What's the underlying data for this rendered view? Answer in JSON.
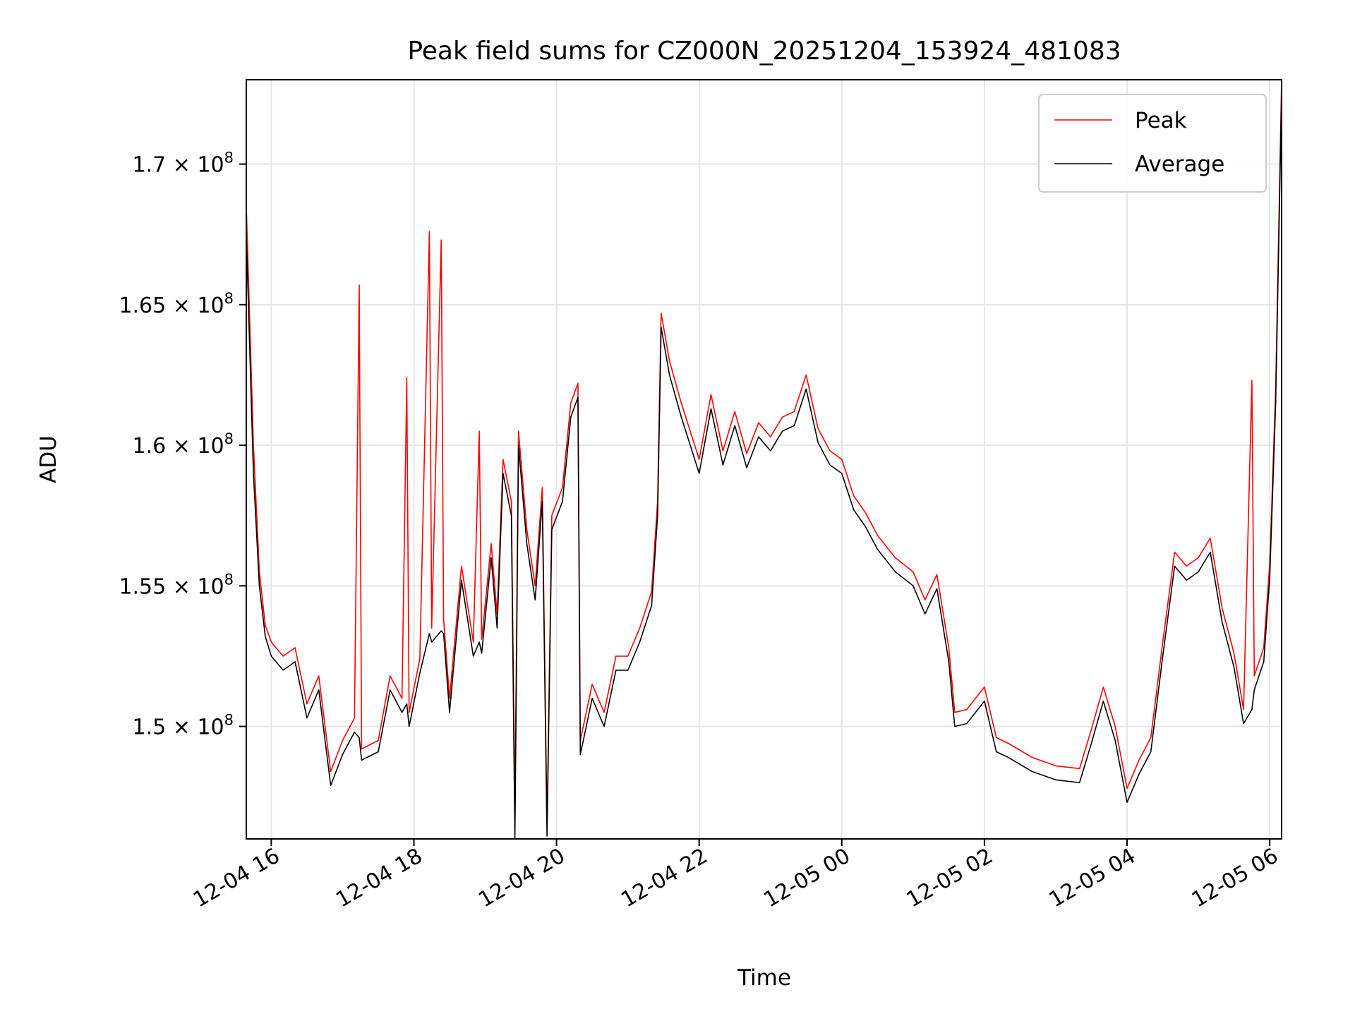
{
  "chart_data": {
    "type": "line",
    "title": "Peak field sums for CZ000N_20251204_153924_481083",
    "xlabel": "Time",
    "ylabel": "ADU",
    "x_range": [
      "2025-12-04T15:39:00",
      "2025-12-05T06:10:00"
    ],
    "ylim": [
      146000000,
      173000000
    ],
    "grid": true,
    "legend_position": "top-right",
    "x_ticks": [
      {
        "time": "2025-12-04T16:00:00",
        "label": "12-04 16"
      },
      {
        "time": "2025-12-04T18:00:00",
        "label": "12-04 18"
      },
      {
        "time": "2025-12-04T20:00:00",
        "label": "12-04 20"
      },
      {
        "time": "2025-12-04T22:00:00",
        "label": "12-04 22"
      },
      {
        "time": "2025-12-05T00:00:00",
        "label": "12-05 00"
      },
      {
        "time": "2025-12-05T02:00:00",
        "label": "12-05 02"
      },
      {
        "time": "2025-12-05T04:00:00",
        "label": "12-05 04"
      },
      {
        "time": "2025-12-05T06:00:00",
        "label": "12-05 06"
      }
    ],
    "y_ticks": [
      {
        "value": 150000000,
        "mantissa": "1.5",
        "exponent": "8"
      },
      {
        "value": 155000000,
        "mantissa": "1.55",
        "exponent": "8"
      },
      {
        "value": 160000000,
        "mantissa": "1.6",
        "exponent": "8"
      },
      {
        "value": 165000000,
        "mantissa": "1.65",
        "exponent": "8"
      },
      {
        "value": 170000000,
        "mantissa": "1.7",
        "exponent": "8"
      }
    ],
    "series": [
      {
        "name": "Peak",
        "color": "#ff0000",
        "points": [
          [
            "2025-12-04T15:39:00",
            168500000
          ],
          [
            "2025-12-04T15:45:00",
            160000000
          ],
          [
            "2025-12-04T15:50:00",
            155500000
          ],
          [
            "2025-12-04T15:55:00",
            153600000
          ],
          [
            "2025-12-04T16:00:00",
            153000000
          ],
          [
            "2025-12-04T16:10:00",
            152500000
          ],
          [
            "2025-12-04T16:20:00",
            152800000
          ],
          [
            "2025-12-04T16:30:00",
            150800000
          ],
          [
            "2025-12-04T16:40:00",
            151800000
          ],
          [
            "2025-12-04T16:50:00",
            148400000
          ],
          [
            "2025-12-04T17:00:00",
            149500000
          ],
          [
            "2025-12-04T17:10:00",
            150300000
          ],
          [
            "2025-12-04T17:14:00",
            165700000
          ],
          [
            "2025-12-04T17:16:00",
            149200000
          ],
          [
            "2025-12-04T17:30:00",
            149500000
          ],
          [
            "2025-12-04T17:40:00",
            151800000
          ],
          [
            "2025-12-04T17:50:00",
            151000000
          ],
          [
            "2025-12-04T17:54:00",
            162400000
          ],
          [
            "2025-12-04T17:56:00",
            150500000
          ],
          [
            "2025-12-04T18:05:00",
            152400000
          ],
          [
            "2025-12-04T18:13:00",
            167600000
          ],
          [
            "2025-12-04T18:15:00",
            153500000
          ],
          [
            "2025-12-04T18:23:00",
            167300000
          ],
          [
            "2025-12-04T18:25:00",
            153800000
          ],
          [
            "2025-12-04T18:30:00",
            151000000
          ],
          [
            "2025-12-04T18:40:00",
            155700000
          ],
          [
            "2025-12-04T18:50:00",
            153000000
          ],
          [
            "2025-12-04T18:55:00",
            160500000
          ],
          [
            "2025-12-04T18:57:00",
            153100000
          ],
          [
            "2025-12-04T19:05:00",
            156500000
          ],
          [
            "2025-12-04T19:10:00",
            154000000
          ],
          [
            "2025-12-04T19:15:00",
            159500000
          ],
          [
            "2025-12-04T19:22:00",
            158000000
          ],
          [
            "2025-12-04T19:25:00",
            147000000
          ],
          [
            "2025-12-04T19:28:00",
            160500000
          ],
          [
            "2025-12-04T19:35:00",
            157000000
          ],
          [
            "2025-12-04T19:42:00",
            155000000
          ],
          [
            "2025-12-04T19:48:00",
            158500000
          ],
          [
            "2025-12-04T19:52:00",
            146500000
          ],
          [
            "2025-12-04T19:56:00",
            157500000
          ],
          [
            "2025-12-04T20:05:00",
            158500000
          ],
          [
            "2025-12-04T20:12:00",
            161500000
          ],
          [
            "2025-12-04T20:18:00",
            162200000
          ],
          [
            "2025-12-04T20:20:00",
            149500000
          ],
          [
            "2025-12-04T20:30:00",
            151500000
          ],
          [
            "2025-12-04T20:40:00",
            150500000
          ],
          [
            "2025-12-04T20:50:00",
            152500000
          ],
          [
            "2025-12-04T21:00:00",
            152500000
          ],
          [
            "2025-12-04T21:10:00",
            153500000
          ],
          [
            "2025-12-04T21:20:00",
            154800000
          ],
          [
            "2025-12-04T21:25:00",
            158000000
          ],
          [
            "2025-12-04T21:28:00",
            164700000
          ],
          [
            "2025-12-04T21:35:00",
            163000000
          ],
          [
            "2025-12-04T21:45:00",
            161500000
          ],
          [
            "2025-12-04T22:00:00",
            159500000
          ],
          [
            "2025-12-04T22:10:00",
            161800000
          ],
          [
            "2025-12-04T22:20:00",
            159800000
          ],
          [
            "2025-12-04T22:30:00",
            161200000
          ],
          [
            "2025-12-04T22:40:00",
            159700000
          ],
          [
            "2025-12-04T22:50:00",
            160800000
          ],
          [
            "2025-12-04T23:00:00",
            160300000
          ],
          [
            "2025-12-04T23:10:00",
            161000000
          ],
          [
            "2025-12-04T23:20:00",
            161200000
          ],
          [
            "2025-12-04T23:30:00",
            162500000
          ],
          [
            "2025-12-04T23:40:00",
            160600000
          ],
          [
            "2025-12-04T23:50:00",
            159800000
          ],
          [
            "2025-12-05T00:00:00",
            159500000
          ],
          [
            "2025-12-05T00:10:00",
            158200000
          ],
          [
            "2025-12-05T00:20:00",
            157600000
          ],
          [
            "2025-12-05T00:30:00",
            156800000
          ],
          [
            "2025-12-05T00:45:00",
            156000000
          ],
          [
            "2025-12-05T01:00:00",
            155500000
          ],
          [
            "2025-12-05T01:10:00",
            154500000
          ],
          [
            "2025-12-05T01:20:00",
            155400000
          ],
          [
            "2025-12-05T01:30:00",
            152800000
          ],
          [
            "2025-12-05T01:35:00",
            150500000
          ],
          [
            "2025-12-05T01:45:00",
            150600000
          ],
          [
            "2025-12-05T02:00:00",
            151400000
          ],
          [
            "2025-12-05T02:10:00",
            149600000
          ],
          [
            "2025-12-05T02:20:00",
            149400000
          ],
          [
            "2025-12-05T02:40:00",
            148900000
          ],
          [
            "2025-12-05T03:00:00",
            148600000
          ],
          [
            "2025-12-05T03:20:00",
            148500000
          ],
          [
            "2025-12-05T03:30:00",
            149900000
          ],
          [
            "2025-12-05T03:40:00",
            151400000
          ],
          [
            "2025-12-05T03:50:00",
            150000000
          ],
          [
            "2025-12-05T04:00:00",
            147800000
          ],
          [
            "2025-12-05T04:10:00",
            148800000
          ],
          [
            "2025-12-05T04:20:00",
            149600000
          ],
          [
            "2025-12-05T04:30:00",
            153000000
          ],
          [
            "2025-12-05T04:40:00",
            156200000
          ],
          [
            "2025-12-05T04:50:00",
            155700000
          ],
          [
            "2025-12-05T05:00:00",
            156000000
          ],
          [
            "2025-12-05T05:10:00",
            156700000
          ],
          [
            "2025-12-05T05:20:00",
            154200000
          ],
          [
            "2025-12-05T05:30:00",
            152600000
          ],
          [
            "2025-12-05T05:38:00",
            150600000
          ],
          [
            "2025-12-05T05:45:00",
            162300000
          ],
          [
            "2025-12-05T05:47:00",
            151800000
          ],
          [
            "2025-12-05T05:55:00",
            152800000
          ],
          [
            "2025-12-05T06:00:00",
            155800000
          ],
          [
            "2025-12-05T06:05:00",
            162000000
          ],
          [
            "2025-12-05T06:10:00",
            173000000
          ]
        ]
      },
      {
        "name": "Average",
        "color": "#000000",
        "points": [
          [
            "2025-12-04T15:39:00",
            167500000
          ],
          [
            "2025-12-04T15:45:00",
            159000000
          ],
          [
            "2025-12-04T15:50:00",
            155000000
          ],
          [
            "2025-12-04T15:55:00",
            153200000
          ],
          [
            "2025-12-04T16:00:00",
            152500000
          ],
          [
            "2025-12-04T16:10:00",
            152000000
          ],
          [
            "2025-12-04T16:20:00",
            152300000
          ],
          [
            "2025-12-04T16:30:00",
            150300000
          ],
          [
            "2025-12-04T16:40:00",
            151300000
          ],
          [
            "2025-12-04T16:50:00",
            147900000
          ],
          [
            "2025-12-04T17:00:00",
            149000000
          ],
          [
            "2025-12-04T17:10:00",
            149800000
          ],
          [
            "2025-12-04T17:14:00",
            149600000
          ],
          [
            "2025-12-04T17:16:00",
            148800000
          ],
          [
            "2025-12-04T17:30:00",
            149100000
          ],
          [
            "2025-12-04T17:40:00",
            151300000
          ],
          [
            "2025-12-04T17:50:00",
            150500000
          ],
          [
            "2025-12-04T17:54:00",
            150800000
          ],
          [
            "2025-12-04T17:56:00",
            150000000
          ],
          [
            "2025-12-04T18:05:00",
            151900000
          ],
          [
            "2025-12-04T18:13:00",
            153300000
          ],
          [
            "2025-12-04T18:15:00",
            153000000
          ],
          [
            "2025-12-04T18:23:00",
            153400000
          ],
          [
            "2025-12-04T18:25:00",
            153300000
          ],
          [
            "2025-12-04T18:30:00",
            150500000
          ],
          [
            "2025-12-04T18:40:00",
            155200000
          ],
          [
            "2025-12-04T18:50:00",
            152500000
          ],
          [
            "2025-12-04T18:55:00",
            153000000
          ],
          [
            "2025-12-04T18:57:00",
            152600000
          ],
          [
            "2025-12-04T19:05:00",
            156000000
          ],
          [
            "2025-12-04T19:10:00",
            153500000
          ],
          [
            "2025-12-04T19:15:00",
            159000000
          ],
          [
            "2025-12-04T19:22:00",
            157500000
          ],
          [
            "2025-12-04T19:25:00",
            146000000
          ],
          [
            "2025-12-04T19:28:00",
            160000000
          ],
          [
            "2025-12-04T19:35:00",
            156500000
          ],
          [
            "2025-12-04T19:42:00",
            154500000
          ],
          [
            "2025-12-04T19:48:00",
            158000000
          ],
          [
            "2025-12-04T19:52:00",
            146100000
          ],
          [
            "2025-12-04T19:56:00",
            157000000
          ],
          [
            "2025-12-04T20:05:00",
            158000000
          ],
          [
            "2025-12-04T20:12:00",
            161000000
          ],
          [
            "2025-12-04T20:18:00",
            161700000
          ],
          [
            "2025-12-04T20:20:00",
            149000000
          ],
          [
            "2025-12-04T20:30:00",
            151000000
          ],
          [
            "2025-12-04T20:40:00",
            150000000
          ],
          [
            "2025-12-04T20:50:00",
            152000000
          ],
          [
            "2025-12-04T21:00:00",
            152000000
          ],
          [
            "2025-12-04T21:10:00",
            153000000
          ],
          [
            "2025-12-04T21:20:00",
            154300000
          ],
          [
            "2025-12-04T21:25:00",
            157500000
          ],
          [
            "2025-12-04T21:28:00",
            164200000
          ],
          [
            "2025-12-04T21:35:00",
            162500000
          ],
          [
            "2025-12-04T21:45:00",
            161000000
          ],
          [
            "2025-12-04T22:00:00",
            159000000
          ],
          [
            "2025-12-04T22:10:00",
            161300000
          ],
          [
            "2025-12-04T22:20:00",
            159300000
          ],
          [
            "2025-12-04T22:30:00",
            160700000
          ],
          [
            "2025-12-04T22:40:00",
            159200000
          ],
          [
            "2025-12-04T22:50:00",
            160300000
          ],
          [
            "2025-12-04T23:00:00",
            159800000
          ],
          [
            "2025-12-04T23:10:00",
            160500000
          ],
          [
            "2025-12-04T23:20:00",
            160700000
          ],
          [
            "2025-12-04T23:30:00",
            162000000
          ],
          [
            "2025-12-04T23:40:00",
            160100000
          ],
          [
            "2025-12-04T23:50:00",
            159300000
          ],
          [
            "2025-12-05T00:00:00",
            159000000
          ],
          [
            "2025-12-05T00:10:00",
            157700000
          ],
          [
            "2025-12-05T00:20:00",
            157100000
          ],
          [
            "2025-12-05T00:30:00",
            156300000
          ],
          [
            "2025-12-05T00:45:00",
            155500000
          ],
          [
            "2025-12-05T01:00:00",
            155000000
          ],
          [
            "2025-12-05T01:10:00",
            154000000
          ],
          [
            "2025-12-05T01:20:00",
            154900000
          ],
          [
            "2025-12-05T01:30:00",
            152300000
          ],
          [
            "2025-12-05T01:35:00",
            150000000
          ],
          [
            "2025-12-05T01:45:00",
            150100000
          ],
          [
            "2025-12-05T02:00:00",
            150900000
          ],
          [
            "2025-12-05T02:10:00",
            149100000
          ],
          [
            "2025-12-05T02:20:00",
            148900000
          ],
          [
            "2025-12-05T02:40:00",
            148400000
          ],
          [
            "2025-12-05T03:00:00",
            148100000
          ],
          [
            "2025-12-05T03:20:00",
            148000000
          ],
          [
            "2025-12-05T03:30:00",
            149400000
          ],
          [
            "2025-12-05T03:40:00",
            150900000
          ],
          [
            "2025-12-05T03:50:00",
            149500000
          ],
          [
            "2025-12-05T04:00:00",
            147300000
          ],
          [
            "2025-12-05T04:10:00",
            148300000
          ],
          [
            "2025-12-05T04:20:00",
            149100000
          ],
          [
            "2025-12-05T04:30:00",
            152500000
          ],
          [
            "2025-12-05T04:40:00",
            155700000
          ],
          [
            "2025-12-05T04:50:00",
            155200000
          ],
          [
            "2025-12-05T05:00:00",
            155500000
          ],
          [
            "2025-12-05T05:10:00",
            156200000
          ],
          [
            "2025-12-05T05:20:00",
            153700000
          ],
          [
            "2025-12-05T05:30:00",
            152100000
          ],
          [
            "2025-12-05T05:38:00",
            150100000
          ],
          [
            "2025-12-05T05:45:00",
            150600000
          ],
          [
            "2025-12-05T05:47:00",
            151300000
          ],
          [
            "2025-12-05T05:55:00",
            152300000
          ],
          [
            "2025-12-05T06:00:00",
            155300000
          ],
          [
            "2025-12-05T06:05:00",
            161500000
          ],
          [
            "2025-12-05T06:10:00",
            172500000
          ]
        ]
      }
    ]
  }
}
